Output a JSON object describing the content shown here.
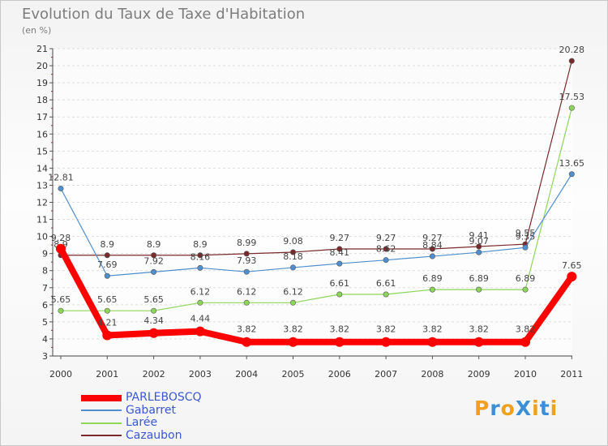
{
  "chart_data": {
    "type": "line",
    "title": "Evolution du Taux de Taxe d'Habitation",
    "subtitle": "(en %)",
    "xlabel": "",
    "ylabel": "",
    "ylim": [
      3,
      21
    ],
    "yticks": [
      "3",
      "4",
      "5",
      "6",
      "7",
      "8",
      "9",
      "10",
      "11",
      "12",
      "13",
      "14",
      "15",
      "16",
      "17",
      "18",
      "19",
      "20",
      "21"
    ],
    "categories": [
      "2000",
      "2001",
      "2002",
      "2003",
      "2004",
      "2005",
      "2006",
      "2007",
      "2008",
      "2009",
      "2010",
      "2011"
    ],
    "legend_position": "bottom-left",
    "series": [
      {
        "name": "PARLEBOSCQ",
        "color": "#ff0000",
        "values": [
          9.28,
          4.21,
          4.34,
          4.44,
          3.82,
          3.82,
          3.82,
          3.82,
          3.82,
          3.82,
          3.82,
          7.65
        ],
        "labels": [
          "9.28",
          "4.21",
          "4.34",
          "4.44",
          "3.82",
          "3.82",
          "3.82",
          "3.82",
          "3.82",
          "3.82",
          "3.82",
          "7.65"
        ]
      },
      {
        "name": "Gabarret",
        "color": "#4f8fcf",
        "values": [
          12.81,
          7.69,
          7.92,
          8.16,
          7.93,
          8.18,
          8.41,
          8.62,
          8.84,
          9.07,
          9.35,
          13.65
        ],
        "labels": [
          "12.81",
          "7.69",
          "7.92",
          "8.16",
          "7.93",
          "8.18",
          "8.41",
          "8.62",
          "8.84",
          "9.07",
          "9.35",
          "13.65"
        ]
      },
      {
        "name": "Larée",
        "color": "#8ed65a",
        "values": [
          5.65,
          5.65,
          5.65,
          6.12,
          6.12,
          6.12,
          6.61,
          6.61,
          6.89,
          6.89,
          6.89,
          17.53
        ],
        "labels": [
          "5.65",
          "5.65",
          "5.65",
          "6.12",
          "6.12",
          "6.12",
          "6.61",
          "6.61",
          "6.89",
          "6.89",
          "6.89",
          "17.53"
        ]
      },
      {
        "name": "Cazaubon",
        "color": "#7a2a2a",
        "values": [
          8.9,
          8.9,
          8.9,
          8.9,
          8.99,
          9.08,
          9.27,
          9.27,
          9.27,
          9.41,
          9.55,
          20.28
        ],
        "labels": [
          "8.9",
          "8.9",
          "8.9",
          "8.9",
          "8.99",
          "9.08",
          "9.27",
          "9.27",
          "9.27",
          "9.41",
          "9.55",
          "20.28"
        ]
      }
    ]
  },
  "legend": [
    "PARLEBOSCQ",
    "Gabarret",
    "Larée",
    "Cazaubon"
  ],
  "logo": {
    "text": "ProXiti",
    "colors": [
      "#f0a020",
      "#3b8fd6",
      "#f0a020",
      "#3b8fd6",
      "#f0a020",
      "#3b8fd6",
      "#f0a020"
    ]
  }
}
